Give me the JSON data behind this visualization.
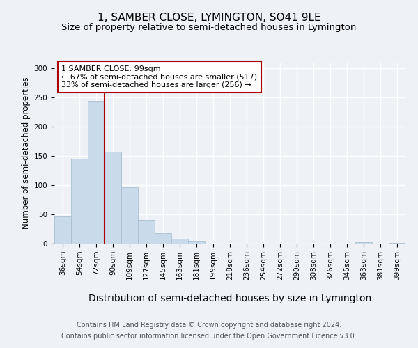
{
  "title": "1, SAMBER CLOSE, LYMINGTON, SO41 9LE",
  "subtitle": "Size of property relative to semi-detached houses in Lymington",
  "xlabel": "Distribution of semi-detached houses by size in Lymington",
  "ylabel": "Number of semi-detached properties",
  "categories": [
    "36sqm",
    "54sqm",
    "72sqm",
    "90sqm",
    "109sqm",
    "127sqm",
    "145sqm",
    "163sqm",
    "181sqm",
    "199sqm",
    "218sqm",
    "236sqm",
    "254sqm",
    "272sqm",
    "290sqm",
    "308sqm",
    "326sqm",
    "345sqm",
    "363sqm",
    "381sqm",
    "399sqm"
  ],
  "values": [
    47,
    146,
    245,
    157,
    97,
    40,
    18,
    8,
    5,
    0,
    0,
    0,
    0,
    0,
    0,
    0,
    0,
    0,
    2,
    0,
    1
  ],
  "bar_color": "#c9daea",
  "bar_edge_color": "#a8c0d0",
  "annotation_title": "1 SAMBER CLOSE: 99sqm",
  "annotation_line1": "← 67% of semi-detached houses are smaller (517)",
  "annotation_line2": "33% of semi-detached houses are larger (256) →",
  "annotation_box_color": "#ffffff",
  "annotation_box_edge": "#aa0000",
  "red_line_color": "#aa0000",
  "red_line_bin": 3,
  "ylim": [
    0,
    310
  ],
  "yticks": [
    0,
    50,
    100,
    150,
    200,
    250,
    300
  ],
  "footer1": "Contains HM Land Registry data © Crown copyright and database right 2024.",
  "footer2": "Contains public sector information licensed under the Open Government Licence v3.0.",
  "background_color": "#eef2f7",
  "grid_color": "#ffffff",
  "title_fontsize": 11,
  "subtitle_fontsize": 9.5,
  "ylabel_fontsize": 8.5,
  "xlabel_fontsize": 10,
  "tick_fontsize": 7.5,
  "footer_fontsize": 7,
  "annotation_fontsize": 8
}
